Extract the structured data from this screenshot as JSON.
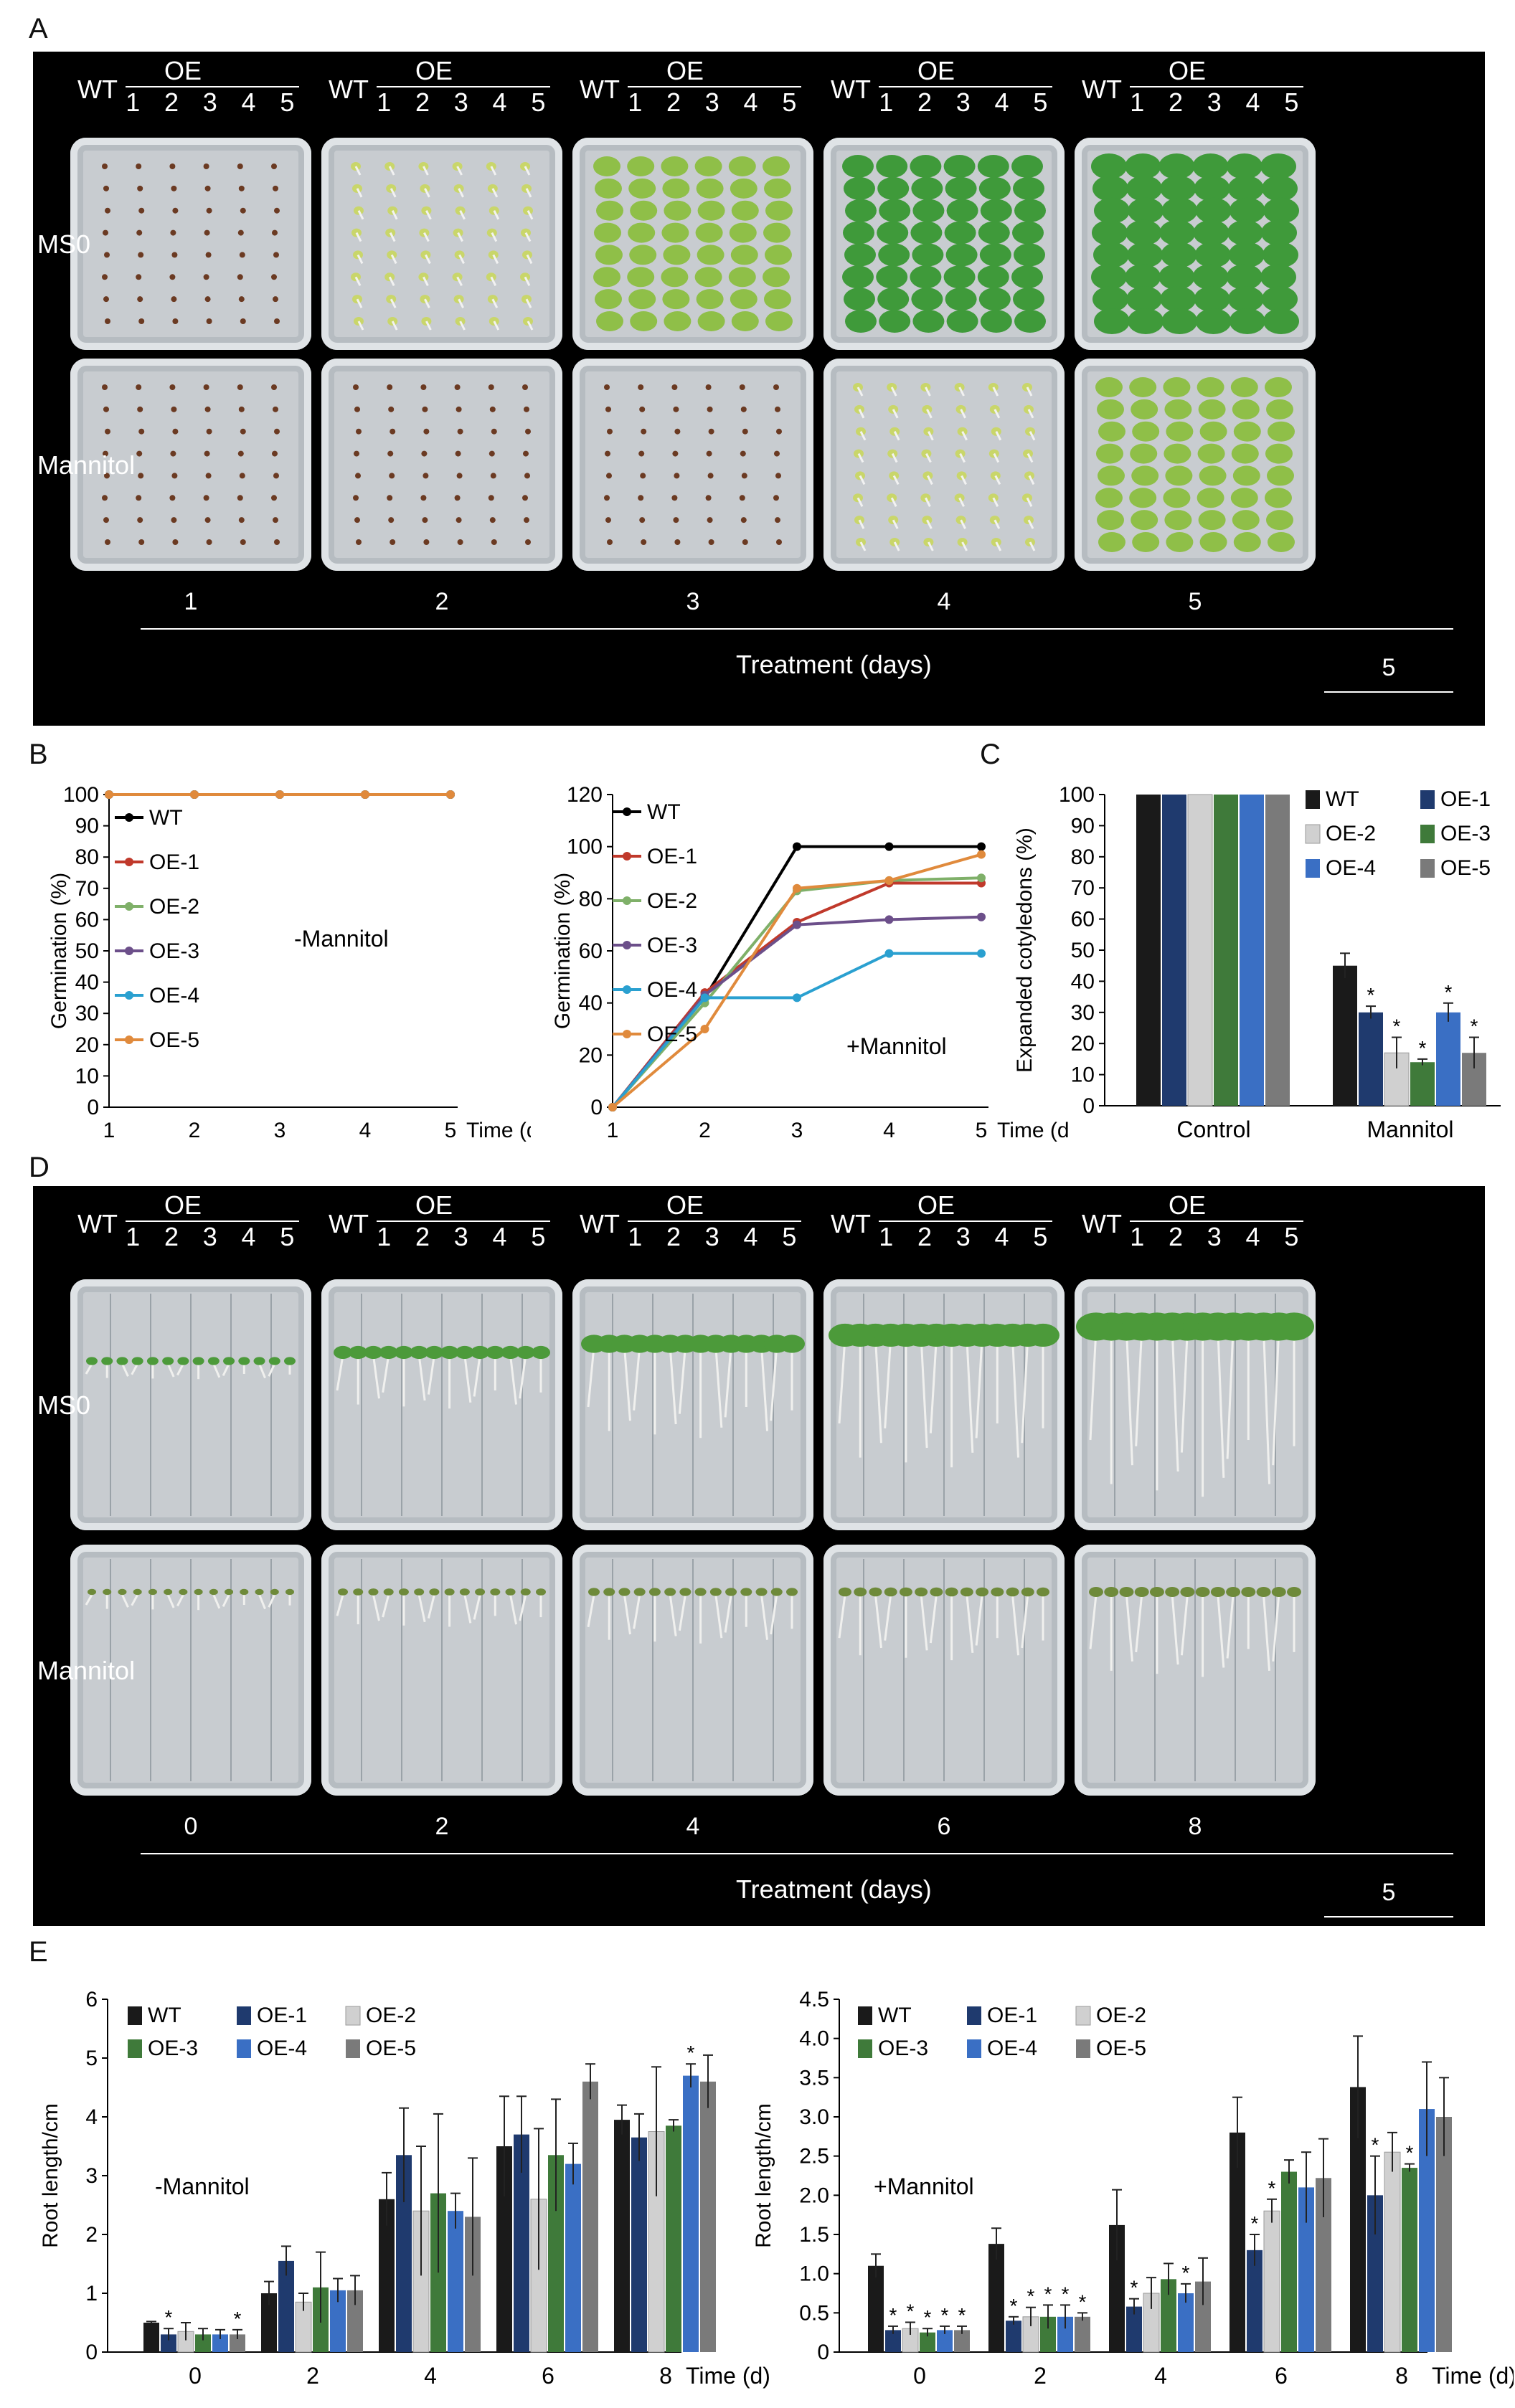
{
  "panels": {
    "A": "A",
    "B": "B",
    "C": "C",
    "D": "D",
    "E": "E"
  },
  "colors": {
    "WT": "#1a1a1a",
    "OE-1": "#1f3a6e",
    "OE-2": "#d0d0d0",
    "OE-3": "#3f7a3a",
    "OE-4": "#3a6fc4",
    "OE-5": "#7a7a7a",
    "line_WT": "#000000",
    "line_OE-1": "#c0392b",
    "line_OE-2": "#7fb069",
    "line_OE-3": "#6c4f8a",
    "line_OE-4": "#2aa0d0",
    "line_OE-5": "#e08a3c"
  },
  "photoA": {
    "header": {
      "wt": "WT",
      "oe": "OE",
      "nums": [
        "1",
        "2",
        "3",
        "4",
        "5"
      ]
    },
    "rows": [
      "MS0",
      "Mannitol"
    ],
    "days": [
      "1",
      "2",
      "3",
      "4",
      "5"
    ],
    "xtitle": "Treatment (days)",
    "scale": "5"
  },
  "photoD": {
    "header": {
      "wt": "WT",
      "oe": "OE",
      "nums": [
        "1",
        "2",
        "3",
        "4",
        "5"
      ]
    },
    "rows": [
      "MS0",
      "Mannitol"
    ],
    "days": [
      "0",
      "2",
      "4",
      "6",
      "8"
    ],
    "xtitle": "Treatment (days)",
    "scale": "5"
  },
  "chart_data": [
    {
      "id": "B-left",
      "type": "line",
      "ylabel": "Germination (%)",
      "xlabel": "Time (d)",
      "annotation": "-Mannitol",
      "x": [
        1,
        2,
        3,
        4,
        5
      ],
      "ylim": [
        0,
        100
      ],
      "yticks": [
        0,
        10,
        20,
        30,
        40,
        50,
        60,
        70,
        80,
        90,
        100
      ],
      "legend": [
        "WT",
        "OE-1",
        "OE-2",
        "OE-3",
        "OE-4",
        "OE-5"
      ],
      "series": [
        {
          "name": "WT",
          "values": [
            100,
            100,
            100,
            100,
            100
          ]
        },
        {
          "name": "OE-1",
          "values": [
            100,
            100,
            100,
            100,
            100
          ]
        },
        {
          "name": "OE-2",
          "values": [
            100,
            100,
            100,
            100,
            100
          ]
        },
        {
          "name": "OE-3",
          "values": [
            100,
            100,
            100,
            100,
            100
          ]
        },
        {
          "name": "OE-4",
          "values": [
            100,
            100,
            100,
            100,
            100
          ]
        },
        {
          "name": "OE-5",
          "values": [
            100,
            100,
            100,
            100,
            100
          ]
        }
      ]
    },
    {
      "id": "B-right",
      "type": "line",
      "ylabel": "Germination (%)",
      "xlabel": "Time (d)",
      "annotation": "+Mannitol",
      "x": [
        1,
        2,
        3,
        4,
        5
      ],
      "ylim": [
        0,
        120
      ],
      "yticks": [
        0,
        20,
        40,
        60,
        80,
        100,
        120
      ],
      "legend": [
        "WT",
        "OE-1",
        "OE-2",
        "OE-3",
        "OE-4",
        "OE-5"
      ],
      "series": [
        {
          "name": "WT",
          "values": [
            0,
            42,
            100,
            100,
            100
          ]
        },
        {
          "name": "OE-1",
          "values": [
            0,
            44,
            71,
            86,
            86
          ]
        },
        {
          "name": "OE-2",
          "values": [
            0,
            40,
            83,
            87,
            88
          ]
        },
        {
          "name": "OE-3",
          "values": [
            0,
            43,
            70,
            72,
            73
          ]
        },
        {
          "name": "OE-4",
          "values": [
            0,
            42,
            42,
            59,
            59
          ]
        },
        {
          "name": "OE-5",
          "values": [
            0,
            30,
            84,
            87,
            97
          ]
        }
      ]
    },
    {
      "id": "C",
      "type": "bar",
      "ylabel": "Expanded cotyledons (%)",
      "categories": [
        "Control",
        "Mannitol"
      ],
      "ylim": [
        0,
        100
      ],
      "yticks": [
        0,
        10,
        20,
        30,
        40,
        50,
        60,
        70,
        80,
        90,
        100
      ],
      "legend": [
        "WT",
        "OE-1",
        "OE-2",
        "OE-3",
        "OE-4",
        "OE-5"
      ],
      "series": [
        {
          "name": "WT",
          "values": [
            100,
            45
          ],
          "err": [
            0,
            4
          ],
          "sig": [
            "",
            ""
          ]
        },
        {
          "name": "OE-1",
          "values": [
            100,
            30
          ],
          "err": [
            0,
            2
          ],
          "sig": [
            "",
            "*"
          ]
        },
        {
          "name": "OE-2",
          "values": [
            100,
            17
          ],
          "err": [
            0,
            5
          ],
          "sig": [
            "",
            "*"
          ]
        },
        {
          "name": "OE-3",
          "values": [
            100,
            14
          ],
          "err": [
            0,
            1
          ],
          "sig": [
            "",
            "*"
          ]
        },
        {
          "name": "OE-4",
          "values": [
            100,
            30
          ],
          "err": [
            0,
            3
          ],
          "sig": [
            "",
            "*"
          ]
        },
        {
          "name": "OE-5",
          "values": [
            100,
            17
          ],
          "err": [
            0,
            5
          ],
          "sig": [
            "",
            "*"
          ]
        }
      ]
    },
    {
      "id": "E-left",
      "type": "bar",
      "ylabel": "Root length/cm",
      "xlabel": "Time (d)",
      "annotation": "-Mannitol",
      "categories": [
        "0",
        "2",
        "4",
        "6",
        "8"
      ],
      "ylim": [
        0,
        6
      ],
      "yticks": [
        0,
        1,
        2,
        3,
        4,
        5,
        6
      ],
      "legend": [
        "WT",
        "OE-1",
        "OE-2",
        "OE-3",
        "OE-4",
        "OE-5"
      ],
      "series": [
        {
          "name": "WT",
          "values": [
            0.5,
            1.0,
            2.6,
            3.5,
            3.95
          ],
          "err": [
            0.02,
            0.2,
            0.45,
            0.85,
            0.25
          ],
          "sig": [
            "",
            "",
            "",
            "",
            ""
          ]
        },
        {
          "name": "OE-1",
          "values": [
            0.3,
            1.55,
            3.35,
            3.7,
            3.65
          ],
          "err": [
            0.1,
            0.25,
            0.8,
            0.65,
            0.4
          ],
          "sig": [
            "*",
            "",
            "",
            "",
            ""
          ]
        },
        {
          "name": "OE-2",
          "values": [
            0.35,
            0.85,
            2.4,
            2.6,
            3.75
          ],
          "err": [
            0.15,
            0.15,
            1.1,
            1.2,
            1.1
          ],
          "sig": [
            "",
            "",
            "",
            "",
            ""
          ]
        },
        {
          "name": "OE-3",
          "values": [
            0.3,
            1.1,
            2.7,
            3.35,
            3.85
          ],
          "err": [
            0.1,
            0.6,
            1.35,
            0.95,
            0.1
          ],
          "sig": [
            "",
            "",
            "",
            "",
            ""
          ]
        },
        {
          "name": "OE-4",
          "values": [
            0.3,
            1.05,
            2.4,
            3.2,
            4.7
          ],
          "err": [
            0.08,
            0.2,
            0.3,
            0.35,
            0.2
          ],
          "sig": [
            "",
            "",
            "",
            "",
            "*"
          ]
        },
        {
          "name": "OE-5",
          "values": [
            0.3,
            1.05,
            2.3,
            4.6,
            4.6
          ],
          "err": [
            0.08,
            0.25,
            1.0,
            0.3,
            0.45
          ],
          "sig": [
            "*",
            "",
            "",
            "",
            ""
          ]
        }
      ]
    },
    {
      "id": "E-right",
      "type": "bar",
      "ylabel": "Root length/cm",
      "xlabel": "Time (d)",
      "annotation": "+Mannitol",
      "categories": [
        "0",
        "2",
        "4",
        "6",
        "8"
      ],
      "ylim": [
        0,
        4.5
      ],
      "yticks": [
        "0",
        "0.5",
        "1.0",
        "1.5",
        "2.0",
        "2.5",
        "3.0",
        "3.5",
        "4.0",
        "4.5"
      ],
      "legend": [
        "WT",
        "OE-1",
        "OE-2",
        "OE-3",
        "OE-4",
        "OE-5"
      ],
      "series": [
        {
          "name": "WT",
          "values": [
            1.1,
            1.38,
            1.62,
            2.8,
            3.38
          ],
          "err": [
            0.15,
            0.2,
            0.45,
            0.45,
            0.65
          ],
          "sig": [
            "",
            "",
            "",
            "",
            ""
          ]
        },
        {
          "name": "OE-1",
          "values": [
            0.28,
            0.4,
            0.58,
            1.3,
            2.0
          ],
          "err": [
            0.05,
            0.05,
            0.1,
            0.2,
            0.5
          ],
          "sig": [
            "*",
            "*",
            "*",
            "*",
            "*"
          ]
        },
        {
          "name": "OE-2",
          "values": [
            0.3,
            0.45,
            0.75,
            1.8,
            2.55
          ],
          "err": [
            0.08,
            0.12,
            0.2,
            0.15,
            0.25
          ],
          "sig": [
            "*",
            "*",
            "",
            "*",
            ""
          ]
        },
        {
          "name": "OE-3",
          "values": [
            0.25,
            0.45,
            0.93,
            2.3,
            2.35
          ],
          "err": [
            0.05,
            0.15,
            0.2,
            0.15,
            0.05
          ],
          "sig": [
            "*",
            "*",
            "",
            "",
            "*"
          ]
        },
        {
          "name": "OE-4",
          "values": [
            0.28,
            0.45,
            0.75,
            2.1,
            3.1
          ],
          "err": [
            0.05,
            0.15,
            0.12,
            0.45,
            0.6
          ],
          "sig": [
            "*",
            "*",
            "*",
            "",
            ""
          ]
        },
        {
          "name": "OE-5",
          "values": [
            0.28,
            0.45,
            0.9,
            2.22,
            3.0
          ],
          "err": [
            0.05,
            0.05,
            0.3,
            0.5,
            0.5
          ],
          "sig": [
            "*",
            "*",
            "",
            "",
            ""
          ]
        }
      ]
    }
  ]
}
